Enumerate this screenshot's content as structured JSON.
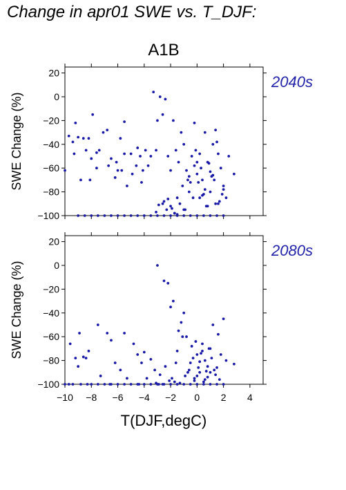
{
  "page": {
    "title": "Change in apr01 SWE vs. T_DJF:",
    "scenario": "A1B"
  },
  "colors": {
    "points": "#1a1aa8",
    "panel_label": "#2222aa",
    "axis": "#000000"
  },
  "chart_data": [
    {
      "type": "scatter",
      "panel_label": "2040s",
      "xlabel": "T(DJF,degC)",
      "ylabel": "SWE Change (%)",
      "xlim": [
        -10,
        5
      ],
      "ylim": [
        -100,
        25
      ],
      "xticks": [
        -10,
        -8,
        -6,
        -4,
        -2,
        0,
        2,
        4
      ],
      "xtick_labels": [
        "−10",
        "−8",
        "−6",
        "−4",
        "−2",
        "0",
        "2",
        "4"
      ],
      "yticks": [
        -100,
        -80,
        -60,
        -40,
        -20,
        0,
        20
      ],
      "ytick_labels": [
        "−100",
        "−80",
        "−60",
        "−40",
        "−20",
        "0",
        "20"
      ],
      "grid": false,
      "points": {
        "x": [
          -10,
          -9.7,
          -9.4,
          -9.2,
          -9.0,
          -8.8,
          -8.6,
          -8.4,
          -8.2,
          -8.0,
          -7.9,
          -7.6,
          -7.4,
          -7.1,
          -6.8,
          -6.7,
          -6.5,
          -6.2,
          -6.0,
          -5.8,
          -5.5,
          -5.5,
          -5.3,
          -5.0,
          -4.9,
          -4.6,
          -4.5,
          -4.3,
          -4.1,
          -3.9,
          -3.7,
          -3.5,
          -3.3,
          -3.1,
          -3.0,
          -2.8,
          -2.6,
          -2.4,
          -2.2,
          -2.0,
          -1.8,
          -1.6,
          -1.4,
          -1.2,
          -1.0,
          -0.8,
          -0.6,
          -0.4,
          -0.2,
          0.0,
          0.2,
          0.4,
          0.6,
          0.8,
          1.0,
          1.2,
          1.4,
          1.6,
          1.8,
          2.0,
          2.2,
          2.4,
          2.8,
          -2.5,
          -2.0,
          -1.5,
          -1.0,
          -0.5,
          0.0,
          0.5,
          1.0,
          1.5,
          2.0,
          -2.3,
          -1.7,
          -1.3,
          -0.7,
          -0.3,
          0.3,
          0.7,
          1.3,
          1.7,
          -0.1,
          0.1,
          0.4,
          0.9,
          1.1,
          1.4,
          1.9,
          -0.9,
          -0.6,
          0.6,
          1.6,
          0.2,
          -0.2,
          0.8,
          1.2,
          -1.1,
          -3.1,
          -2.6,
          -2.2,
          -1.9,
          -1.7,
          -1.5,
          -2.9,
          -9.0,
          -8.5,
          -8.0,
          -7.5,
          -7.0,
          -6.5,
          -6.0,
          -5.5,
          -5.0,
          -4.5,
          -4.0,
          -3.5,
          -3.0,
          -2.5,
          -2.0,
          -1.5,
          -1.0,
          -0.5,
          0.0,
          0.5,
          1.0,
          1.5,
          2.0,
          -9.3,
          -8.1,
          -7.6,
          -6.1,
          -5.7,
          -4.2
        ],
        "y": [
          -62,
          -33,
          -38,
          -22,
          -34,
          -70,
          -35,
          -45,
          -35,
          -52,
          -15,
          -47,
          -45,
          -30,
          -28,
          -58,
          -52,
          -68,
          -62,
          -35,
          -21,
          -48,
          -75,
          -48,
          -65,
          -58,
          -43,
          -50,
          -62,
          -45,
          -58,
          -50,
          4,
          -45,
          -20,
          0,
          -15,
          -2,
          -50,
          -62,
          -20,
          -45,
          -55,
          -30,
          -40,
          -62,
          -80,
          -50,
          -22,
          -65,
          -48,
          -70,
          -30,
          -55,
          -80,
          -40,
          -28,
          -90,
          -60,
          -75,
          -85,
          -50,
          -65,
          -88,
          -92,
          -85,
          -95,
          -72,
          -55,
          -82,
          -63,
          -38,
          -78,
          -95,
          -98,
          -90,
          -70,
          -85,
          -60,
          -92,
          -70,
          -88,
          -45,
          -72,
          -83,
          -56,
          -67,
          -90,
          -82,
          -95,
          -67,
          -78,
          -48,
          -85,
          -58,
          -92,
          -66,
          -75,
          -97,
          -90,
          -86,
          -94,
          -98,
          -99,
          -91,
          -100,
          -100,
          -100,
          -100,
          -100,
          -100,
          -100,
          -100,
          -100,
          -100,
          -100,
          -100,
          -100,
          -100,
          -100,
          -100,
          -100,
          -100,
          -100,
          -100,
          -100,
          -100,
          -100,
          -48,
          -70,
          -60,
          -55,
          -62,
          -72
        ]
      }
    },
    {
      "type": "scatter",
      "panel_label": "2080s",
      "xlabel": "T(DJF,degC)",
      "ylabel": "SWE Change (%)",
      "xlim": [
        -10,
        5
      ],
      "ylim": [
        -100,
        25
      ],
      "xticks": [
        -10,
        -8,
        -6,
        -4,
        -2,
        0,
        2,
        4
      ],
      "xtick_labels": [
        "−10",
        "−8",
        "−6",
        "−4",
        "−2",
        "0",
        "2",
        "4"
      ],
      "yticks": [
        -100,
        -80,
        -60,
        -40,
        -20,
        0,
        20
      ],
      "ytick_labels": [
        "−100",
        "−80",
        "−60",
        "−40",
        "−20",
        "0",
        "20"
      ],
      "grid": false,
      "points": {
        "x": [
          -9.6,
          -9.2,
          -9.0,
          -8.9,
          -8.6,
          -8.4,
          -8.2,
          -7.5,
          -7.3,
          -6.8,
          -6.5,
          -6.2,
          -5.8,
          -5.5,
          -5.3,
          -4.8,
          -4.5,
          -4.2,
          -4.0,
          -3.8,
          -3.5,
          -3.2,
          -3.0,
          -2.8,
          -2.5,
          -2.2,
          -2.0,
          -1.8,
          -1.6,
          -1.4,
          -1.2,
          -1.0,
          -0.8,
          -0.6,
          -0.4,
          -0.2,
          0.0,
          0.2,
          0.4,
          0.6,
          0.8,
          1.0,
          1.2,
          1.4,
          1.6,
          1.8,
          2.0,
          2.2,
          2.8,
          -2.4,
          -1.9,
          -1.5,
          -1.1,
          -0.7,
          -0.3,
          0.1,
          0.5,
          0.9,
          1.3,
          1.7,
          -0.5,
          0.0,
          0.3,
          0.7,
          -0.1,
          0.6,
          1.1,
          -1.3,
          -0.9,
          1.5,
          0.2,
          -0.2,
          0.4,
          0.8,
          1.0,
          -1.7,
          -2.1,
          -3.1,
          -2.9,
          -2.6,
          -9.7,
          -9.4,
          -8.8,
          -8.0,
          -7.5,
          -7.0,
          -6.5,
          -6.0,
          -5.5,
          -5.0,
          -4.5,
          -4.0,
          -3.5,
          -3.0,
          -2.5,
          -2.0,
          -1.5,
          -1.0,
          -0.5,
          0.0,
          0.5,
          1.0,
          1.5,
          2.0,
          -10,
          -8.3,
          -6.6,
          -4.4
        ],
        "y": [
          -66,
          -78,
          -85,
          -57,
          -77,
          -78,
          -72,
          -50,
          -93,
          -57,
          -63,
          -82,
          -88,
          -57,
          -95,
          -66,
          -75,
          -82,
          -73,
          -95,
          -79,
          -88,
          0,
          -92,
          -13,
          -15,
          -35,
          -30,
          -82,
          -55,
          -48,
          -40,
          -60,
          -88,
          -68,
          -95,
          -75,
          -90,
          -66,
          -80,
          -85,
          -70,
          -50,
          -92,
          -58,
          -75,
          -45,
          -80,
          -83,
          -85,
          -95,
          -72,
          -60,
          -90,
          -78,
          -86,
          -98,
          -70,
          -88,
          -96,
          -82,
          -93,
          -74,
          -89,
          -64,
          -96,
          -78,
          -99,
          -93,
          -86,
          -81,
          -97,
          -72,
          -94,
          -90,
          -98,
          -97,
          -99,
          -100,
          -100,
          -100,
          -100,
          -100,
          -100,
          -100,
          -100,
          -100,
          -100,
          -100,
          -100,
          -100,
          -100,
          -100,
          -100,
          -100,
          -100,
          -100,
          -100,
          -100,
          -100,
          -100,
          -100,
          -100,
          -100,
          -100,
          -100,
          -100,
          -100
        ]
      }
    }
  ]
}
